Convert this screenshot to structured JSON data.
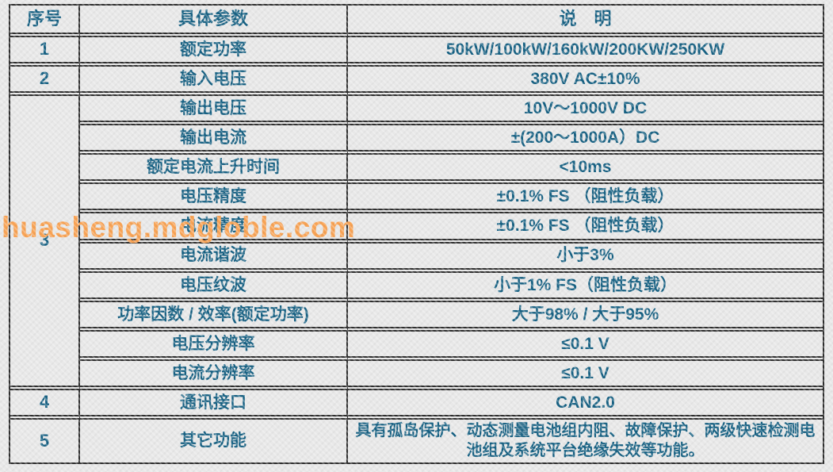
{
  "watermark": {
    "text": "huasheng.mdgloble.com",
    "color": "#f8a355"
  },
  "colors": {
    "text": "#176183",
    "border": "#2e2e2e",
    "background": "#e8e8e8"
  },
  "table": {
    "headers": {
      "no": "序号",
      "param": "具体参数",
      "desc": "说　明"
    },
    "rows": [
      {
        "no": "1",
        "param": "额定功率",
        "desc": "50kW/100kW/160kW/200KW/250KW"
      },
      {
        "no": "2",
        "param": "输入电压",
        "desc": "380V AC±10%"
      },
      {
        "no": "3",
        "param": "输出电压",
        "desc": "10V～1000V DC"
      },
      {
        "param": "输出电流",
        "desc": "±(200～1000A）DC"
      },
      {
        "param": "额定电流上升时间",
        "desc": "<10ms"
      },
      {
        "param": "电压精度",
        "desc": "±0.1% FS （阻性负载）"
      },
      {
        "param": "电流精度",
        "desc": "±0.1% FS （阻性负载）"
      },
      {
        "param": "电流谐波",
        "desc": "小于3%"
      },
      {
        "param": "电压纹波",
        "desc": "小于1% FS（阻性负载）"
      },
      {
        "param": "功率因数 / 效率(额定功率)",
        "desc": "大于98% / 大于95%"
      },
      {
        "param": "电压分辨率",
        "desc": "≤0.1 V"
      },
      {
        "param": "电流分辨率",
        "desc": "≤0.1 V"
      },
      {
        "no": "4",
        "param": "通讯接口",
        "desc": "CAN2.0"
      },
      {
        "no": "5",
        "param": "其它功能",
        "desc": "具有孤岛保护、动态测量电池组内阻、故障保护、两级快速检测电池组及系统平台绝缘失效等功能。"
      }
    ]
  }
}
